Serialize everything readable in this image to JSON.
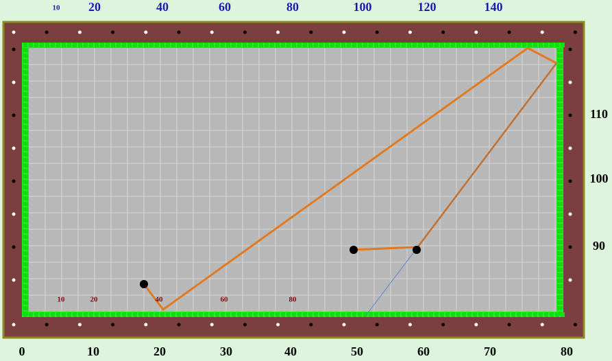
{
  "top_labels": [
    "10",
    "20",
    "40",
    "60",
    "80",
    "100",
    "120",
    "140"
  ],
  "bottom_labels": [
    "0",
    "10",
    "20",
    "30",
    "40",
    "50",
    "60",
    "70",
    "80"
  ],
  "right_labels": [
    "110",
    "100",
    "90"
  ],
  "inner_labels": [
    "10",
    "20",
    "40",
    "60",
    "80"
  ]
}
